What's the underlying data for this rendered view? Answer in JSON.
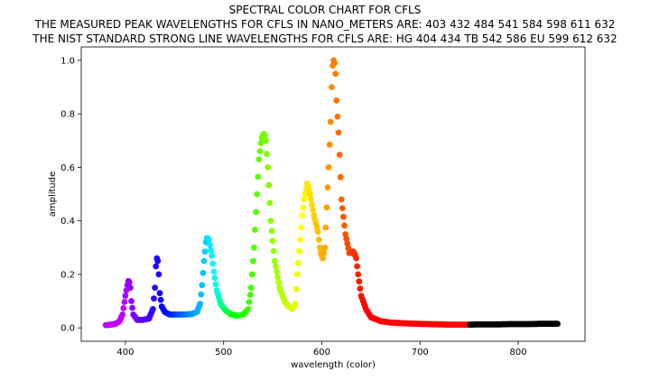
{
  "chart_data": {
    "type": "scatter",
    "title": "SPECTRAL COLOR CHART FOR CFLS",
    "subtitle_1": "THE MEASURED PEAK WAVELENGTHS FOR CFLS IN NANO_METERS ARE: 403 432 484 541 584 598 611 632",
    "subtitle_2": "THE NIST STANDARD STRONG LINE WAVELENGTHS FOR CFLS ARE: HG 404 434 TB 542 586 EU 599 612 632",
    "xlabel": "wavelength (color)",
    "ylabel": "amplitude",
    "xlim": [
      355,
      868
    ],
    "ylim": [
      -0.05,
      1.05
    ],
    "xticks": [
      400,
      500,
      600,
      700,
      800
    ],
    "yticks": [
      0.0,
      0.2,
      0.4,
      0.6,
      0.8,
      1.0
    ],
    "xtick_labels": [
      "400",
      "500",
      "600",
      "700",
      "800"
    ],
    "ytick_labels": [
      "0.0",
      "0.2",
      "0.4",
      "0.6",
      "0.8",
      "1.0"
    ],
    "grid": false,
    "color_encoding": "point color follows visible spectrum hue of wavelength; points beyond ~750 nm are black",
    "x": [
      380,
      385,
      390,
      394,
      397,
      400,
      402,
      403,
      404,
      405,
      406,
      408,
      412,
      418,
      424,
      428,
      430,
      431,
      432,
      433,
      434,
      435,
      437,
      440,
      445,
      452,
      460,
      468,
      473,
      476,
      478,
      480,
      482,
      483,
      484,
      485,
      486,
      488,
      490,
      493,
      497,
      502,
      508,
      514,
      520,
      525,
      528,
      531,
      534,
      536,
      538,
      539,
      540,
      541,
      542,
      543,
      545,
      548,
      552,
      557,
      562,
      566,
      570,
      573,
      575,
      578,
      580,
      582,
      584,
      585,
      586,
      588,
      590,
      592,
      594,
      596,
      597,
      598,
      599,
      600,
      601,
      603,
      605,
      607,
      609,
      610,
      611,
      612,
      613,
      614,
      615,
      617,
      620,
      624,
      628,
      631,
      632,
      633,
      635,
      637,
      640,
      645,
      650,
      660,
      670,
      680,
      690,
      700,
      710,
      720,
      730,
      740,
      750,
      760,
      770,
      780,
      790,
      800,
      810,
      820,
      830,
      840
    ],
    "y": [
      0.01,
      0.012,
      0.015,
      0.025,
      0.05,
      0.12,
      0.16,
      0.175,
      0.17,
      0.15,
      0.1,
      0.05,
      0.03,
      0.03,
      0.035,
      0.07,
      0.15,
      0.23,
      0.26,
      0.25,
      0.2,
      0.13,
      0.08,
      0.06,
      0.05,
      0.05,
      0.05,
      0.052,
      0.06,
      0.09,
      0.16,
      0.25,
      0.32,
      0.335,
      0.335,
      0.33,
      0.31,
      0.27,
      0.21,
      0.14,
      0.09,
      0.065,
      0.05,
      0.045,
      0.05,
      0.07,
      0.15,
      0.3,
      0.5,
      0.63,
      0.69,
      0.71,
      0.72,
      0.725,
      0.72,
      0.7,
      0.6,
      0.4,
      0.25,
      0.15,
      0.1,
      0.08,
      0.07,
      0.09,
      0.2,
      0.33,
      0.42,
      0.48,
      0.52,
      0.54,
      0.53,
      0.5,
      0.46,
      0.42,
      0.39,
      0.36,
      0.33,
      0.3,
      0.28,
      0.27,
      0.26,
      0.3,
      0.45,
      0.6,
      0.77,
      0.9,
      0.98,
      1.0,
      0.99,
      0.95,
      0.85,
      0.73,
      0.48,
      0.35,
      0.28,
      0.28,
      0.285,
      0.28,
      0.26,
      0.2,
      0.12,
      0.07,
      0.04,
      0.025,
      0.02,
      0.018,
      0.016,
      0.015,
      0.014,
      0.013,
      0.012,
      0.012,
      0.012,
      0.013,
      0.013,
      0.013,
      0.014,
      0.014,
      0.014,
      0.015,
      0.015,
      0.015
    ]
  }
}
